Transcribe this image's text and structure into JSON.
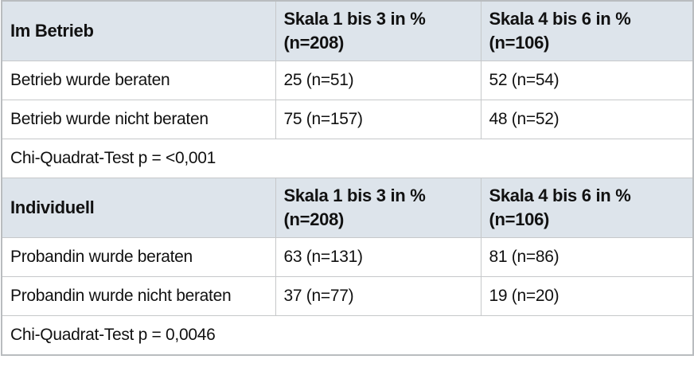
{
  "section1": {
    "title": "Im Betrieb",
    "col2": {
      "line1": "Skala 1 bis 3 in %",
      "line2": "(n=208)"
    },
    "col3": {
      "line1": "Skala 4 bis 6 in %",
      "line2": "(n=106)"
    },
    "rows": [
      {
        "label": "Betrieb wurde beraten",
        "v1": "25 (n=51)",
        "v2": "52 (n=54)"
      },
      {
        "label": "Betrieb wurde nicht beraten",
        "v1": "75 (n=157)",
        "v2": "48 (n=52)"
      }
    ],
    "note": "Chi-Quadrat-Test p = <0,001"
  },
  "section2": {
    "title": "Individuell",
    "col2": {
      "line1": "Skala 1 bis 3 in %",
      "line2": "(n=208)"
    },
    "col3": {
      "line1": "Skala 4 bis 6 in %",
      "line2": "(n=106)"
    },
    "rows": [
      {
        "label": "Probandin wurde beraten",
        "v1": "63 (n=131)",
        "v2": "81 (n=86)"
      },
      {
        "label": "Probandin wurde nicht beraten",
        "v1": "37 (n=77)",
        "v2": "19 (n=20)"
      }
    ],
    "note": "Chi-Quadrat-Test p = 0,0046"
  }
}
